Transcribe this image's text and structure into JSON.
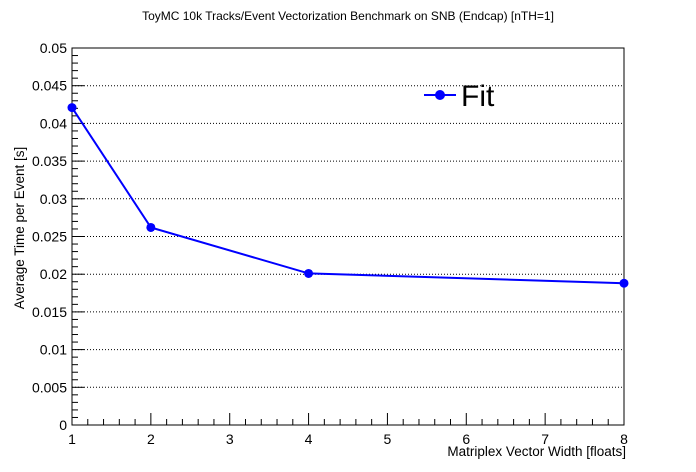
{
  "chart_data": {
    "type": "line",
    "title": "ToyMC 10k Tracks/Event Vectorization Benchmark on SNB (Endcap) [nTH=1]",
    "xlabel": "Matriplex Vector Width [floats]",
    "ylabel": "Average Time per Event [s]",
    "xlim": [
      1,
      8
    ],
    "ylim": [
      0,
      0.05
    ],
    "x_ticks": [
      "1",
      "2",
      "3",
      "4",
      "5",
      "6",
      "7",
      "8"
    ],
    "y_ticks": [
      "0",
      "0.005",
      "0.01",
      "0.015",
      "0.02",
      "0.025",
      "0.03",
      "0.035",
      "0.04",
      "0.045",
      "0.05"
    ],
    "y_gridlines": "dotted",
    "legend_position": "top-right",
    "series": [
      {
        "name": "Fit",
        "color": "#0000ff",
        "marker": "circle",
        "x": [
          1,
          2,
          4,
          8
        ],
        "y": [
          0.0421,
          0.0262,
          0.0201,
          0.0188
        ]
      }
    ]
  }
}
